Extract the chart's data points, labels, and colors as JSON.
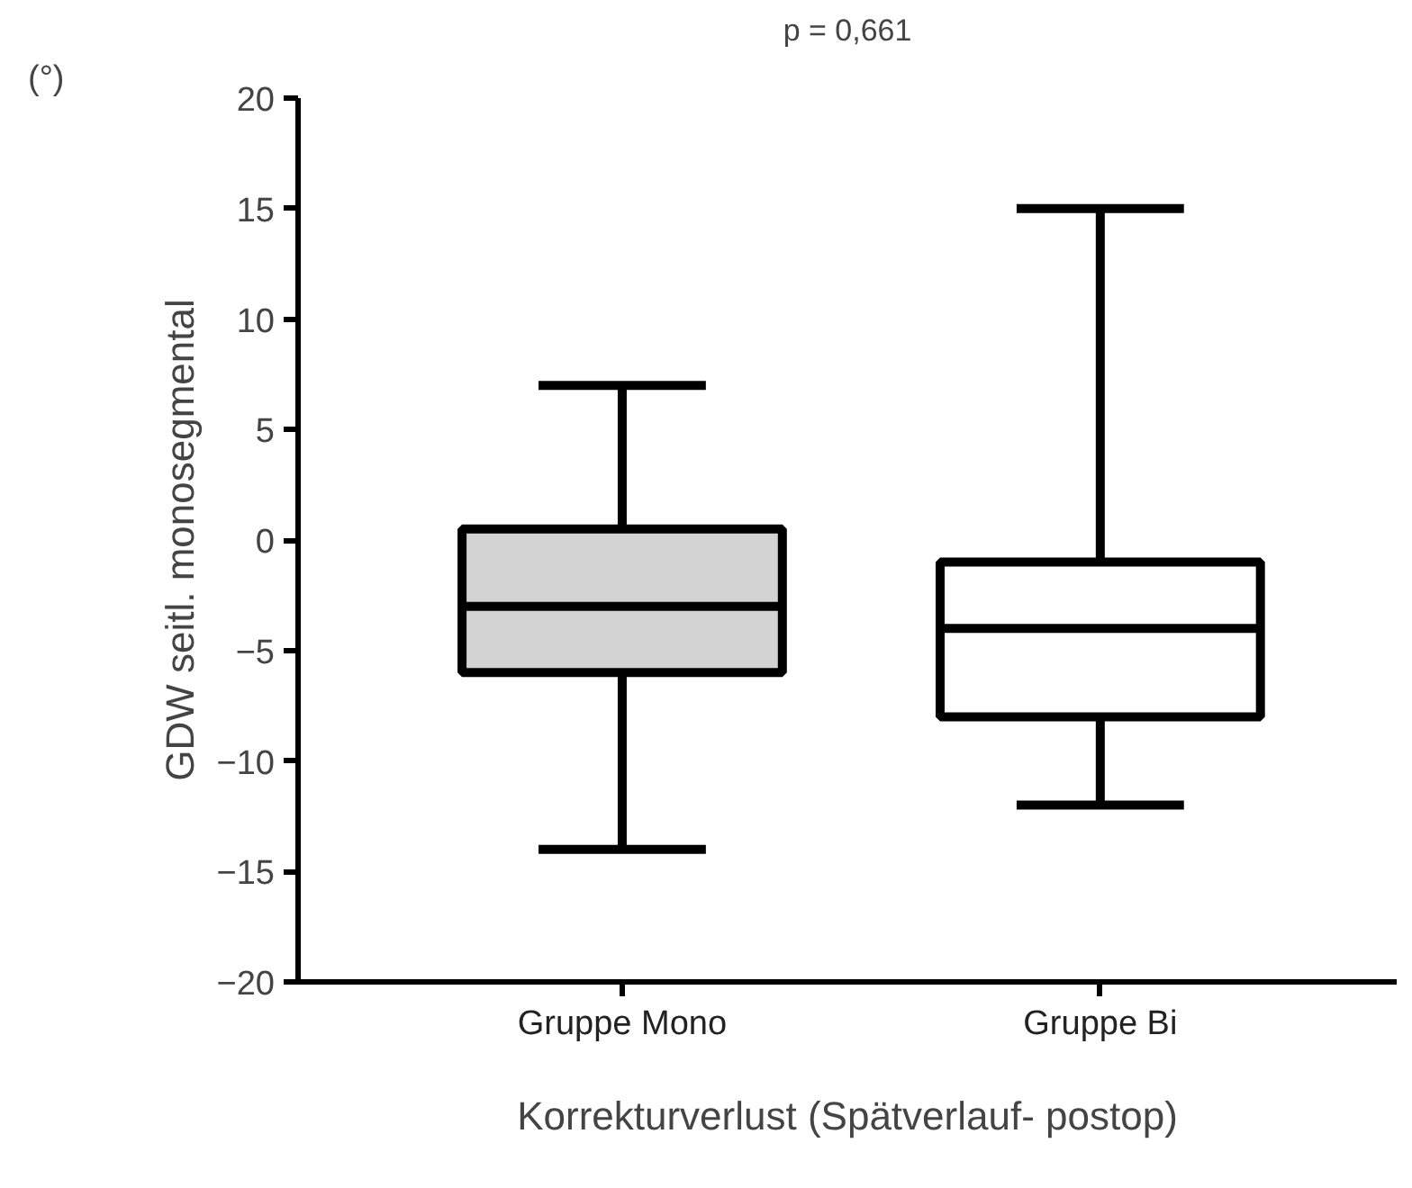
{
  "chart_data": {
    "type": "box",
    "title": "p = 0,661",
    "xlabel": "Korrekturverlust (Spätverlauf- postop)",
    "ylabel": "GDW seitl. monosegmental",
    "annotations": [
      "(°)"
    ],
    "categories": [
      "Gruppe Mono",
      "Gruppe Bi"
    ],
    "colors": [
      "#d3d3d3",
      "#ffffff"
    ],
    "boxes": [
      {
        "low": -14,
        "q1": -6,
        "median": -3,
        "q3": 0.5,
        "high": 7
      },
      {
        "low": -12,
        "q1": -8,
        "median": -4,
        "q3": -1,
        "high": 15
      }
    ],
    "ylim": [
      -20,
      20
    ],
    "yticks": [
      -20,
      -15,
      -10,
      -5,
      0,
      5,
      10,
      15,
      20
    ],
    "grid": false
  }
}
